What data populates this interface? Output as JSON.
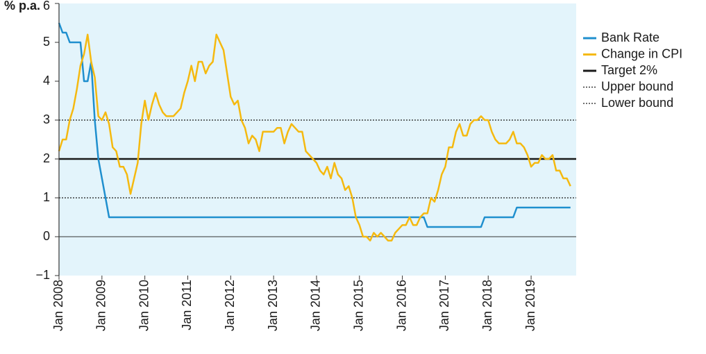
{
  "chart_data": {
    "type": "line",
    "y_label": "% p.a.",
    "categories": [
      "Jan 2008",
      null,
      null,
      null,
      null,
      null,
      null,
      null,
      null,
      null,
      null,
      null,
      "Jan 2009",
      null,
      null,
      null,
      null,
      null,
      null,
      null,
      null,
      null,
      null,
      null,
      "Jan 2010",
      null,
      null,
      null,
      null,
      null,
      null,
      null,
      null,
      null,
      null,
      null,
      "Jan 2011",
      null,
      null,
      null,
      null,
      null,
      null,
      null,
      null,
      null,
      null,
      null,
      "Jan 2012",
      null,
      null,
      null,
      null,
      null,
      null,
      null,
      null,
      null,
      null,
      null,
      "Jan 2013",
      null,
      null,
      null,
      null,
      null,
      null,
      null,
      null,
      null,
      null,
      null,
      "Jan 2014",
      null,
      null,
      null,
      null,
      null,
      null,
      null,
      null,
      null,
      null,
      null,
      "Jan 2015",
      null,
      null,
      null,
      null,
      null,
      null,
      null,
      null,
      null,
      null,
      null,
      "Jan 2016",
      null,
      null,
      null,
      null,
      null,
      null,
      null,
      null,
      null,
      null,
      null,
      "Jan 2017",
      null,
      null,
      null,
      null,
      null,
      null,
      null,
      null,
      null,
      null,
      null,
      "Jan 2018",
      null,
      null,
      null,
      null,
      null,
      null,
      null,
      null,
      null,
      null,
      null,
      "Jan 2019",
      null,
      null,
      null,
      null,
      null,
      null,
      null,
      null,
      null,
      null,
      null
    ],
    "series": [
      {
        "name": "Bank Rate",
        "color": "#1f8fce",
        "values": [
          5.5,
          5.25,
          5.25,
          5,
          5,
          5,
          5,
          4,
          4,
          4.5,
          3,
          2,
          1.5,
          1,
          0.5,
          0.5,
          0.5,
          0.5,
          0.5,
          0.5,
          0.5,
          0.5,
          0.5,
          0.5,
          0.5,
          0.5,
          0.5,
          0.5,
          0.5,
          0.5,
          0.5,
          0.5,
          0.5,
          0.5,
          0.5,
          0.5,
          0.5,
          0.5,
          0.5,
          0.5,
          0.5,
          0.5,
          0.5,
          0.5,
          0.5,
          0.5,
          0.5,
          0.5,
          0.5,
          0.5,
          0.5,
          0.5,
          0.5,
          0.5,
          0.5,
          0.5,
          0.5,
          0.5,
          0.5,
          0.5,
          0.5,
          0.5,
          0.5,
          0.5,
          0.5,
          0.5,
          0.5,
          0.5,
          0.5,
          0.5,
          0.5,
          0.5,
          0.5,
          0.5,
          0.5,
          0.5,
          0.5,
          0.5,
          0.5,
          0.5,
          0.5,
          0.5,
          0.5,
          0.5,
          0.5,
          0.5,
          0.5,
          0.5,
          0.5,
          0.5,
          0.5,
          0.5,
          0.5,
          0.5,
          0.5,
          0.5,
          0.5,
          0.5,
          0.5,
          0.5,
          0.5,
          0.5,
          0.5,
          0.25,
          0.25,
          0.25,
          0.25,
          0.25,
          0.25,
          0.25,
          0.25,
          0.25,
          0.25,
          0.25,
          0.25,
          0.25,
          0.25,
          0.25,
          0.25,
          0.5,
          0.5,
          0.5,
          0.5,
          0.5,
          0.5,
          0.5,
          0.5,
          0.5,
          0.75,
          0.75,
          0.75,
          0.75,
          0.75,
          0.75,
          0.75,
          0.75,
          0.75,
          0.75,
          0.75,
          0.75,
          0.75,
          0.75,
          0.75,
          0.75
        ]
      },
      {
        "name": "Change in CPI",
        "color": "#f5b90f",
        "values": [
          2.2,
          2.5,
          2.5,
          3.0,
          3.3,
          3.8,
          4.4,
          4.7,
          5.2,
          4.5,
          4.1,
          3.1,
          3.0,
          3.2,
          2.9,
          2.3,
          2.2,
          1.8,
          1.8,
          1.6,
          1.1,
          1.5,
          1.9,
          2.9,
          3.5,
          3.0,
          3.4,
          3.7,
          3.4,
          3.2,
          3.1,
          3.1,
          3.1,
          3.2,
          3.3,
          3.7,
          4.0,
          4.4,
          4.0,
          4.5,
          4.5,
          4.2,
          4.4,
          4.5,
          5.2,
          5.0,
          4.8,
          4.2,
          3.6,
          3.4,
          3.5,
          3.0,
          2.8,
          2.4,
          2.6,
          2.5,
          2.2,
          2.7,
          2.7,
          2.7,
          2.7,
          2.8,
          2.8,
          2.4,
          2.7,
          2.9,
          2.8,
          2.7,
          2.7,
          2.2,
          2.1,
          2.0,
          1.9,
          1.7,
          1.6,
          1.8,
          1.5,
          1.9,
          1.6,
          1.5,
          1.2,
          1.3,
          1.0,
          0.5,
          0.3,
          0.0,
          0.0,
          -0.1,
          0.1,
          0.0,
          0.1,
          0.0,
          -0.1,
          -0.1,
          0.1,
          0.2,
          0.3,
          0.3,
          0.5,
          0.3,
          0.3,
          0.5,
          0.6,
          0.6,
          1.0,
          0.9,
          1.2,
          1.6,
          1.8,
          2.3,
          2.3,
          2.7,
          2.9,
          2.6,
          2.6,
          2.9,
          3.0,
          3.0,
          3.1,
          3.0,
          3.0,
          2.7,
          2.5,
          2.4,
          2.4,
          2.4,
          2.5,
          2.7,
          2.4,
          2.4,
          2.3,
          2.1,
          1.8,
          1.9,
          1.9,
          2.1,
          2.0,
          2.0,
          2.1,
          1.7,
          1.7,
          1.5,
          1.5,
          1.3
        ]
      }
    ],
    "reference_lines": [
      {
        "name": "Target 2%",
        "value": 2,
        "color": "#1a1a1a",
        "dash": "solid"
      },
      {
        "name": "Upper bound",
        "value": 3,
        "color": "#1a1a1a",
        "dash": "dotted"
      },
      {
        "name": "Lower bound",
        "value": 1,
        "color": "#1a1a1a",
        "dash": "dotted"
      }
    ],
    "ylim": [
      -1,
      6
    ],
    "yticks": [
      {
        "value": -1,
        "label": "−1"
      },
      0,
      1,
      2,
      3,
      4,
      5,
      6
    ],
    "zero_line": true,
    "background": "#e3f4fb",
    "legend": "right"
  }
}
